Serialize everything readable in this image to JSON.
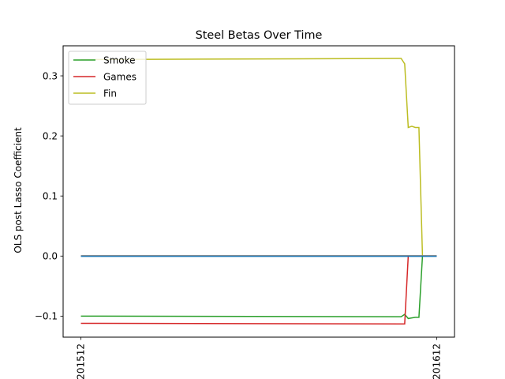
{
  "chart_data": {
    "type": "line",
    "title": "Steel Betas Over Time",
    "xlabel": "",
    "ylabel": "OLS post Lasso Coefficient",
    "x_ticks": [
      "201512",
      "201612"
    ],
    "xlim": [
      -0.05,
      1.05
    ],
    "ylim": [
      -0.135,
      0.35
    ],
    "y_ticks": [
      {
        "value": -0.1,
        "label": "−0.1"
      },
      {
        "value": 0.0,
        "label": "0.0"
      },
      {
        "value": 0.1,
        "label": "0.1"
      },
      {
        "value": 0.2,
        "label": "0.2"
      },
      {
        "value": 0.3,
        "label": "0.3"
      }
    ],
    "grid": false,
    "legend_position": "top-left",
    "legend": [
      {
        "name": "Smoke",
        "color": "#2ca02c"
      },
      {
        "name": "Games",
        "color": "#d62728"
      },
      {
        "name": "Fin",
        "color": "#bcbd22"
      }
    ],
    "series": [
      {
        "name": "Smoke",
        "color": "#2ca02c",
        "x": [
          0,
          0.89,
          0.9,
          0.91,
          0.92,
          0.93,
          0.94,
          0.95,
          0.96,
          0.97,
          0.98,
          0.99,
          1.0
        ],
        "y": [
          -0.1,
          -0.101,
          -0.101,
          -0.097,
          -0.104,
          -0.103,
          -0.102,
          -0.102,
          0,
          0,
          0,
          0,
          0
        ]
      },
      {
        "name": "Games",
        "color": "#d62728",
        "x": [
          0,
          0.9,
          0.91,
          0.92,
          0.93,
          0.94,
          0.95,
          0.96,
          0.97,
          0.98,
          0.99,
          1.0
        ],
        "y": [
          -0.112,
          -0.113,
          -0.113,
          0,
          0,
          0,
          0,
          0,
          0,
          0,
          0,
          0
        ]
      },
      {
        "name": "Fin",
        "color": "#bcbd22",
        "x": [
          0,
          0.89,
          0.9,
          0.91,
          0.92,
          0.93,
          0.94,
          0.95,
          0.96,
          0.97,
          0.98,
          0.99,
          1.0
        ],
        "y": [
          0.327,
          0.329,
          0.329,
          0.32,
          0.214,
          0.216,
          0.214,
          0.214,
          0,
          0,
          0,
          0,
          0
        ]
      },
      {
        "color": "#17becf",
        "x": [
          0,
          1.0
        ],
        "y": [
          0,
          0
        ]
      },
      {
        "color": "#7f7f7f",
        "x": [
          0,
          1.0
        ],
        "y": [
          0.0005,
          0.0005
        ]
      },
      {
        "color": "#1f77b4",
        "x": [
          0,
          1.0
        ],
        "y": [
          -0.0005,
          -0.0005
        ]
      }
    ]
  }
}
